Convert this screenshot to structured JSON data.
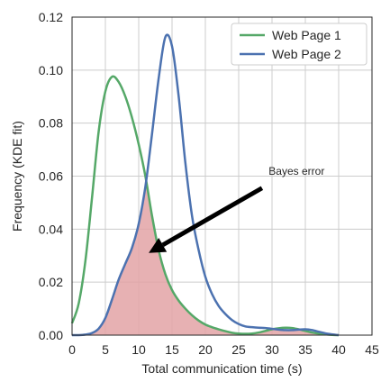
{
  "chart_data": {
    "type": "line",
    "xlabel": "Total communication time (s)",
    "ylabel": "Frequency (KDE fit)",
    "xlim": [
      0,
      45
    ],
    "ylim": [
      0,
      0.12
    ],
    "x_ticks": [
      0,
      5,
      10,
      15,
      20,
      25,
      30,
      35,
      40,
      45
    ],
    "y_ticks": [
      0.0,
      0.02,
      0.04,
      0.06,
      0.08,
      0.1,
      0.12
    ],
    "y_tick_labels": [
      "0.00",
      "0.02",
      "0.04",
      "0.06",
      "0.08",
      "0.10",
      "0.12"
    ],
    "grid": true,
    "legend_position": "top-right",
    "series": [
      {
        "name": "Web Page 1",
        "color": "#55a868",
        "x": [
          0,
          1,
          2,
          3,
          4,
          5,
          6,
          7,
          8,
          9,
          10,
          11,
          12,
          13,
          14,
          15,
          16,
          17,
          18,
          19,
          20,
          21,
          22,
          23,
          24,
          25,
          26,
          27,
          28,
          29,
          30,
          31,
          32,
          33,
          34,
          35,
          36,
          37,
          38,
          39,
          40
        ],
        "y": [
          0.0045,
          0.012,
          0.028,
          0.052,
          0.077,
          0.092,
          0.0975,
          0.0955,
          0.09,
          0.082,
          0.072,
          0.06,
          0.045,
          0.032,
          0.023,
          0.017,
          0.013,
          0.01,
          0.0075,
          0.0055,
          0.004,
          0.003,
          0.0022,
          0.0015,
          0.0009,
          0.0006,
          0.0005,
          0.0006,
          0.001,
          0.0016,
          0.0022,
          0.0026,
          0.0028,
          0.0027,
          0.0022,
          0.0016,
          0.001,
          0.0006,
          0.0003,
          0.0001,
          0.0
        ]
      },
      {
        "name": "Web Page 2",
        "color": "#4c72b0",
        "x": [
          0,
          1,
          2,
          3,
          4,
          5,
          6,
          7,
          8,
          9,
          10,
          11,
          12,
          13,
          14,
          15,
          16,
          17,
          18,
          19,
          20,
          21,
          22,
          23,
          24,
          25,
          26,
          27,
          28,
          29,
          30,
          31,
          32,
          33,
          34,
          35,
          36,
          37,
          38,
          39,
          40
        ],
        "y": [
          0.0,
          0.0,
          0.0002,
          0.0008,
          0.0025,
          0.0065,
          0.0135,
          0.021,
          0.027,
          0.033,
          0.042,
          0.056,
          0.076,
          0.097,
          0.1125,
          0.109,
          0.09,
          0.065,
          0.045,
          0.032,
          0.022,
          0.0155,
          0.011,
          0.008,
          0.0057,
          0.0042,
          0.0033,
          0.003,
          0.0028,
          0.0027,
          0.0024,
          0.0021,
          0.0019,
          0.0019,
          0.0021,
          0.0022,
          0.0019,
          0.0013,
          0.0007,
          0.0003,
          0.0
        ]
      }
    ],
    "overlap_fill_color": "#e3a3a6",
    "annotation": {
      "text": "Bayes error",
      "text_x": 29.5,
      "text_y": 0.0605,
      "arrow_from_x": 28.5,
      "arrow_from_y": 0.0555,
      "arrow_to_x": 11.5,
      "arrow_to_y": 0.031
    }
  }
}
